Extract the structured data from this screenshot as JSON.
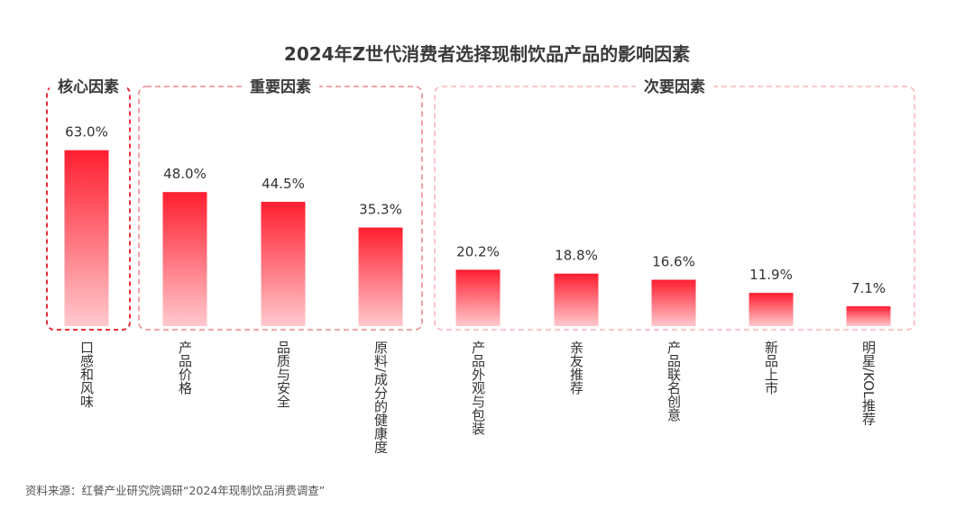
{
  "chart_data": {
    "type": "bar",
    "title": "2024年Z世代消费者选择现制饮品产品的影响因素",
    "unit": "%",
    "categories": [
      "口感和风味",
      "产品价格",
      "品质与安全",
      "原料/成分的健康度",
      "产品外观与包装",
      "亲友推荐",
      "产品联名创意",
      "新品上市",
      "明星/KOL推荐"
    ],
    "values": [
      63.0,
      48.0,
      44.5,
      35.3,
      20.2,
      18.8,
      16.6,
      11.9,
      7.1
    ],
    "value_labels": [
      "63.0%",
      "48.0%",
      "44.5%",
      "35.3%",
      "20.2%",
      "18.8%",
      "16.6%",
      "11.9%",
      "7.1%"
    ],
    "groups": [
      {
        "label": "核心因素",
        "start": 0,
        "end": 0,
        "color": "#e8303e"
      },
      {
        "label": "重要因素",
        "start": 1,
        "end": 3,
        "color": "#f08a8f"
      },
      {
        "label": "次要因素",
        "start": 4,
        "end": 8,
        "color": "#f7b7ba"
      }
    ],
    "ylim": [
      0,
      70
    ],
    "grid": false,
    "legend": "none",
    "bar_colors": {
      "top": "#ff1e30",
      "bottom": "#ffc9cd"
    }
  },
  "source": "资料来源：红餐产业研究院调研“2024年现制饮品消费调查”"
}
